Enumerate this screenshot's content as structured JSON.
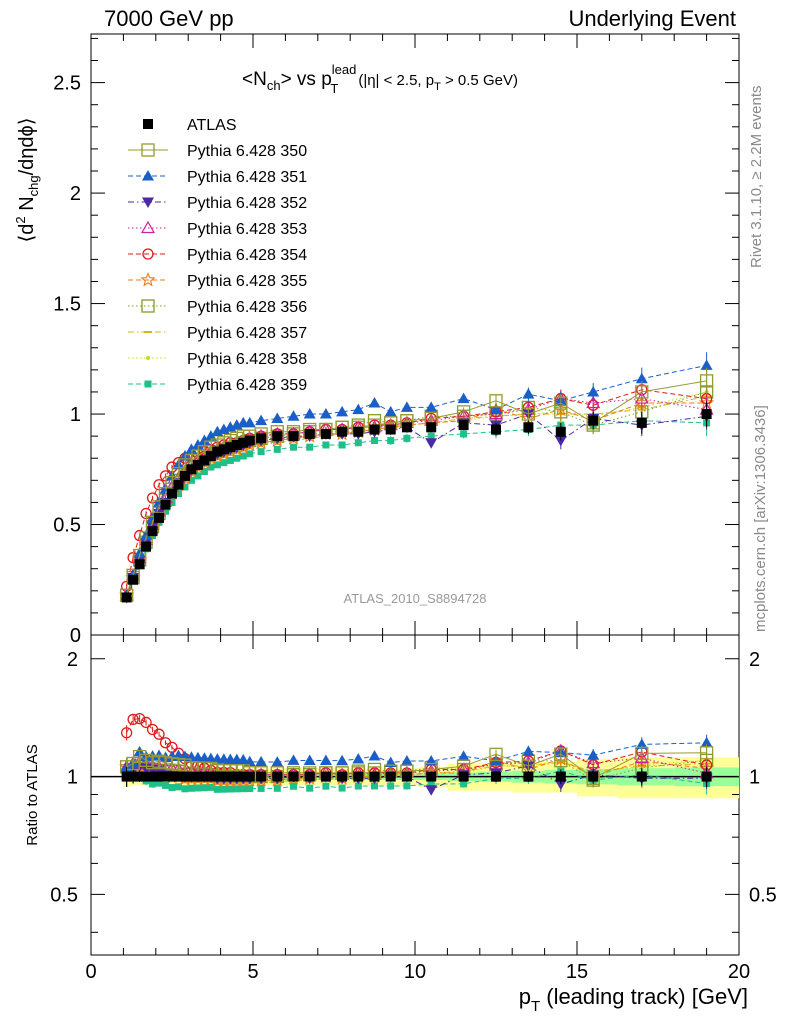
{
  "header": {
    "left": "7000 GeV pp",
    "right": "Underlying Event"
  },
  "side_labels": {
    "rivet": "Rivet 3.1.10, ≥ 2.2M events",
    "mcplots": "mcplots.cern.ch [arXiv:1306.3436]"
  },
  "chart_data": {
    "type": "scatter",
    "title": "<N_ch> vs p_T^lead (|η| < 2.5, p_T > 0.5 GeV)",
    "title_parts": {
      "main": "<N",
      "sub1": "ch",
      "mid": "> vs p",
      "sup": "lead",
      "sub2": "T",
      "cut": "(|η| < 2.5, p",
      "cut_sub": "T",
      "cut_end": " > 0.5 GeV)"
    },
    "watermark": "ATLAS_2010_S8894728",
    "xlabel": "p_T (leading track) [GeV]",
    "xlabel_parts": {
      "p": "p",
      "sub": "T",
      "rest": " (leading track) [GeV]"
    },
    "ylabel": "⟨d² N_chg/dηdϕ⟩",
    "ylabel_parts": {
      "a": "⟨d",
      "sup": "2",
      "b": " N",
      "sub": "chg",
      "c": "/dηdϕ⟩"
    },
    "ratio_ylabel": "Ratio to ATLAS",
    "xlim": [
      0,
      20
    ],
    "ylim": [
      0,
      2.72
    ],
    "ratio_ylim": [
      0.35,
      2.3
    ],
    "x_ticks": [
      "0",
      "5",
      "10",
      "15",
      "20"
    ],
    "y_ticks": [
      "0",
      "0.5",
      "1",
      "1.5",
      "2",
      "2.5"
    ],
    "ratio_y_ticks": [
      "0.5",
      "1",
      "2"
    ],
    "x": [
      1.1,
      1.3,
      1.5,
      1.7,
      1.9,
      2.1,
      2.3,
      2.5,
      2.7,
      2.9,
      3.1,
      3.3,
      3.5,
      3.7,
      3.9,
      4.1,
      4.3,
      4.5,
      4.7,
      4.9,
      5.25,
      5.75,
      6.25,
      6.75,
      7.25,
      7.75,
      8.25,
      8.75,
      9.25,
      9.75,
      10.5,
      11.5,
      12.5,
      13.5,
      14.5,
      15.5,
      17.0,
      19.0
    ],
    "data_atlas": [
      0.17,
      0.25,
      0.32,
      0.4,
      0.47,
      0.53,
      0.59,
      0.64,
      0.68,
      0.72,
      0.75,
      0.77,
      0.79,
      0.81,
      0.83,
      0.84,
      0.85,
      0.86,
      0.87,
      0.88,
      0.89,
      0.9,
      0.9,
      0.91,
      0.91,
      0.92,
      0.92,
      0.93,
      0.93,
      0.94,
      0.94,
      0.95,
      0.93,
      0.94,
      0.92,
      0.97,
      0.96,
      1.0
    ],
    "data_err": [
      0.01,
      0.01,
      0.01,
      0.01,
      0.01,
      0.01,
      0.01,
      0.01,
      0.01,
      0.01,
      0.01,
      0.01,
      0.01,
      0.01,
      0.01,
      0.01,
      0.01,
      0.01,
      0.01,
      0.01,
      0.01,
      0.01,
      0.01,
      0.01,
      0.01,
      0.01,
      0.01,
      0.01,
      0.02,
      0.02,
      0.02,
      0.02,
      0.03,
      0.03,
      0.04,
      0.04,
      0.05,
      0.06
    ],
    "band_rel_inner": [
      0.02,
      0.02,
      0.02,
      0.02,
      0.02,
      0.02,
      0.02,
      0.02,
      0.02,
      0.02,
      0.02,
      0.02,
      0.02,
      0.02,
      0.02,
      0.02,
      0.02,
      0.02,
      0.02,
      0.02,
      0.02,
      0.02,
      0.02,
      0.02,
      0.02,
      0.02,
      0.02,
      0.02,
      0.02,
      0.02,
      0.02,
      0.025,
      0.03,
      0.035,
      0.04,
      0.045,
      0.05,
      0.055
    ],
    "band_rel_outer": [
      0.06,
      0.05,
      0.05,
      0.05,
      0.05,
      0.05,
      0.05,
      0.05,
      0.05,
      0.05,
      0.05,
      0.05,
      0.05,
      0.05,
      0.05,
      0.05,
      0.05,
      0.05,
      0.05,
      0.05,
      0.05,
      0.05,
      0.05,
      0.05,
      0.05,
      0.05,
      0.05,
      0.05,
      0.05,
      0.05,
      0.06,
      0.08,
      0.08,
      0.09,
      0.09,
      0.11,
      0.12,
      0.12
    ],
    "series": [
      {
        "name": "ATLAS",
        "color": "#000000",
        "marker": "square-filled",
        "line": "none",
        "values": [
          0.17,
          0.25,
          0.32,
          0.4,
          0.47,
          0.53,
          0.59,
          0.64,
          0.68,
          0.72,
          0.75,
          0.77,
          0.79,
          0.81,
          0.83,
          0.84,
          0.85,
          0.86,
          0.87,
          0.88,
          0.89,
          0.9,
          0.9,
          0.91,
          0.91,
          0.92,
          0.92,
          0.93,
          0.93,
          0.94,
          0.94,
          0.95,
          0.93,
          0.94,
          0.92,
          0.97,
          0.96,
          1.0
        ]
      },
      {
        "name": "Pythia 6.428 350",
        "color": "#999933",
        "marker": "square-open",
        "line": "solid",
        "values": [
          0.18,
          0.27,
          0.36,
          0.44,
          0.51,
          0.58,
          0.64,
          0.69,
          0.73,
          0.77,
          0.79,
          0.81,
          0.83,
          0.85,
          0.86,
          0.87,
          0.88,
          0.89,
          0.9,
          0.9,
          0.91,
          0.92,
          0.92,
          0.93,
          0.93,
          0.94,
          0.94,
          0.95,
          0.96,
          0.97,
          0.98,
          1.01,
          1.06,
          1.0,
          1.05,
          0.96,
          1.1,
          1.15
        ]
      },
      {
        "name": "Pythia 6.428 351",
        "color": "#1a5fc8",
        "marker": "triangle-up-filled",
        "line": "dashed",
        "values": [
          0.18,
          0.27,
          0.37,
          0.45,
          0.53,
          0.6,
          0.66,
          0.72,
          0.77,
          0.81,
          0.84,
          0.86,
          0.88,
          0.9,
          0.92,
          0.93,
          0.94,
          0.95,
          0.96,
          0.96,
          0.97,
          0.98,
          0.99,
          1.0,
          1.0,
          1.01,
          1.02,
          1.05,
          1.01,
          1.03,
          1.03,
          1.07,
          1.02,
          1.09,
          1.06,
          1.1,
          1.16,
          1.22
        ]
      },
      {
        "name": "Pythia 6.428 352",
        "color": "#4b2aa8",
        "marker": "triangle-down-filled",
        "line": "dashdot",
        "values": [
          0.17,
          0.26,
          0.34,
          0.42,
          0.49,
          0.55,
          0.6,
          0.65,
          0.69,
          0.72,
          0.75,
          0.77,
          0.79,
          0.81,
          0.82,
          0.83,
          0.84,
          0.85,
          0.86,
          0.87,
          0.88,
          0.89,
          0.9,
          0.9,
          0.91,
          0.91,
          0.91,
          0.92,
          0.93,
          0.94,
          0.87,
          0.96,
          0.95,
          1.0,
          0.88,
          0.98,
          0.95,
          0.99
        ]
      },
      {
        "name": "Pythia 6.428 353",
        "color": "#cc2299",
        "marker": "triangle-up-open",
        "line": "dotted",
        "values": [
          0.18,
          0.27,
          0.35,
          0.43,
          0.5,
          0.56,
          0.62,
          0.67,
          0.71,
          0.74,
          0.77,
          0.79,
          0.81,
          0.83,
          0.84,
          0.85,
          0.86,
          0.87,
          0.88,
          0.89,
          0.9,
          0.91,
          0.91,
          0.92,
          0.93,
          0.93,
          0.94,
          0.94,
          0.95,
          0.96,
          0.97,
          0.99,
          1.0,
          1.02,
          1.07,
          1.05,
          1.07,
          1.02
        ]
      },
      {
        "name": "Pythia 6.428 354",
        "color": "#e01a1a",
        "marker": "circle-open",
        "line": "dashed",
        "values": [
          0.22,
          0.35,
          0.45,
          0.55,
          0.62,
          0.68,
          0.72,
          0.76,
          0.78,
          0.8,
          0.81,
          0.82,
          0.83,
          0.84,
          0.85,
          0.86,
          0.87,
          0.87,
          0.88,
          0.89,
          0.9,
          0.91,
          0.91,
          0.92,
          0.93,
          0.93,
          0.94,
          0.95,
          0.95,
          0.96,
          0.98,
          0.99,
          1.01,
          1.03,
          1.07,
          1.04,
          1.11,
          1.07
        ]
      },
      {
        "name": "Pythia 6.428 355",
        "color": "#f07a18",
        "marker": "star-open",
        "line": "dashed",
        "values": [
          0.18,
          0.26,
          0.34,
          0.41,
          0.48,
          0.54,
          0.59,
          0.64,
          0.68,
          0.71,
          0.74,
          0.76,
          0.78,
          0.8,
          0.81,
          0.82,
          0.83,
          0.84,
          0.85,
          0.86,
          0.87,
          0.88,
          0.89,
          0.9,
          0.91,
          0.91,
          0.92,
          0.93,
          0.94,
          0.95,
          0.96,
          0.97,
          1.02,
          0.98,
          1.02,
          0.97,
          1.05,
          1.05
        ]
      },
      {
        "name": "Pythia 6.428 356",
        "color": "#7f9e2a",
        "marker": "square-open",
        "line": "dotted",
        "values": [
          0.18,
          0.26,
          0.34,
          0.42,
          0.49,
          0.55,
          0.61,
          0.66,
          0.7,
          0.73,
          0.76,
          0.78,
          0.8,
          0.82,
          0.83,
          0.84,
          0.85,
          0.86,
          0.87,
          0.88,
          0.89,
          0.9,
          0.91,
          0.92,
          0.93,
          0.94,
          0.95,
          0.97,
          0.96,
          0.97,
          0.99,
          0.99,
          1.0,
          1.03,
          1.01,
          0.95,
          1.01,
          1.1
        ]
      },
      {
        "name": "Pythia 6.428 357",
        "color": "#d8b41a",
        "marker": "dash",
        "line": "dashdot",
        "values": [
          0.18,
          0.26,
          0.34,
          0.41,
          0.48,
          0.54,
          0.59,
          0.63,
          0.67,
          0.7,
          0.73,
          0.75,
          0.77,
          0.79,
          0.8,
          0.81,
          0.82,
          0.83,
          0.84,
          0.85,
          0.86,
          0.87,
          0.88,
          0.89,
          0.9,
          0.91,
          0.92,
          0.93,
          0.94,
          0.95,
          0.96,
          0.98,
          0.99,
          1.0,
          1.0,
          1.0,
          1.02,
          1.08
        ]
      },
      {
        "name": "Pythia 6.428 358",
        "color": "#c8dc1e",
        "marker": "dot",
        "line": "dotted",
        "values": [
          0.18,
          0.26,
          0.34,
          0.42,
          0.48,
          0.54,
          0.59,
          0.64,
          0.68,
          0.71,
          0.74,
          0.76,
          0.78,
          0.8,
          0.81,
          0.82,
          0.83,
          0.84,
          0.85,
          0.86,
          0.87,
          0.88,
          0.89,
          0.9,
          0.91,
          0.91,
          0.92,
          0.93,
          0.94,
          0.95,
          0.96,
          0.97,
          0.99,
          1.0,
          1.01,
          0.99,
          1.03,
          1.1
        ]
      },
      {
        "name": "Pythia 6.428 359",
        "color": "#1fbf8a",
        "marker": "square-filled-small",
        "line": "dashed",
        "values": [
          0.17,
          0.25,
          0.32,
          0.39,
          0.45,
          0.51,
          0.56,
          0.6,
          0.64,
          0.67,
          0.7,
          0.72,
          0.74,
          0.76,
          0.77,
          0.78,
          0.79,
          0.8,
          0.81,
          0.82,
          0.83,
          0.84,
          0.85,
          0.85,
          0.86,
          0.86,
          0.87,
          0.88,
          0.88,
          0.89,
          0.9,
          0.91,
          0.92,
          0.93,
          0.95,
          0.95,
          0.97,
          0.96
        ]
      }
    ]
  }
}
